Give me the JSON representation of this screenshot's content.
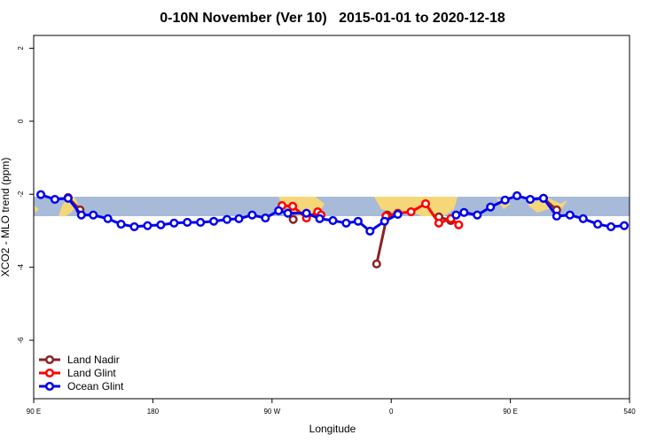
{
  "chart_data": {
    "type": "line",
    "title": "0-10N November (Ver 10)   2015-01-01 to 2020-12-18",
    "x_label": "Longitude",
    "y_label": "XCO2 - MLO trend (ppm)",
    "xlim": [
      90,
      540
    ],
    "ylim": [
      -7.6,
      2.35
    ],
    "xticks": [
      {
        "value": 90,
        "label": "90 E"
      },
      180,
      {
        "value": 270,
        "label": "90 W"
      },
      {
        "value": 360,
        "label": "0"
      },
      {
        "value": 450,
        "label": "90 E"
      },
      540
    ],
    "yticks": [
      2,
      0,
      -2,
      -4,
      -6
    ],
    "legend": "bottom-left",
    "series": [
      {
        "name": "Land Nadir",
        "color": "#8b2323",
        "x": [
          116,
          125,
          286,
          349,
          357,
          396,
          405,
          475,
          485
        ],
        "values": [
          -2.09,
          -2.43,
          -2.69,
          -3.91,
          -2.57,
          -2.62,
          -2.72,
          -2.11,
          -2.43
        ]
      },
      {
        "name": "Land Glint",
        "color": "#ff0000",
        "x": [
          277.5,
          285.6,
          296,
          304.5,
          307,
          356,
          365,
          375,
          386,
          396,
          405,
          411
        ],
        "values": [
          -2.31,
          -2.33,
          -2.65,
          -2.48,
          -2.57,
          -2.6,
          -2.52,
          -2.48,
          -2.26,
          -2.79,
          -2.67,
          -2.84
        ]
      },
      {
        "name": "Ocean Glint",
        "color": "#0000ee",
        "x": [
          95.4,
          106,
          116,
          126,
          135,
          146,
          156,
          166,
          176,
          186,
          196,
          206,
          216,
          226,
          236,
          245,
          255,
          265,
          275,
          282,
          296,
          306,
          316,
          326,
          335,
          344,
          355,
          365,
          409,
          415,
          425,
          435,
          446,
          455,
          465,
          475,
          485,
          495,
          505,
          516,
          526,
          536
        ],
        "values": [
          -2.01,
          -2.14,
          -2.11,
          -2.57,
          -2.57,
          -2.67,
          -2.82,
          -2.89,
          -2.86,
          -2.84,
          -2.79,
          -2.77,
          -2.77,
          -2.74,
          -2.69,
          -2.67,
          -2.57,
          -2.65,
          -2.45,
          -2.52,
          -2.52,
          -2.67,
          -2.72,
          -2.79,
          -2.74,
          -3.01,
          -2.74,
          -2.55,
          -2.57,
          -2.5,
          -2.57,
          -2.35,
          -2.16,
          -2.04,
          -2.14,
          -2.11,
          -2.6,
          -2.57,
          -2.67,
          -2.82,
          -2.89,
          -2.86
        ]
      }
    ]
  }
}
